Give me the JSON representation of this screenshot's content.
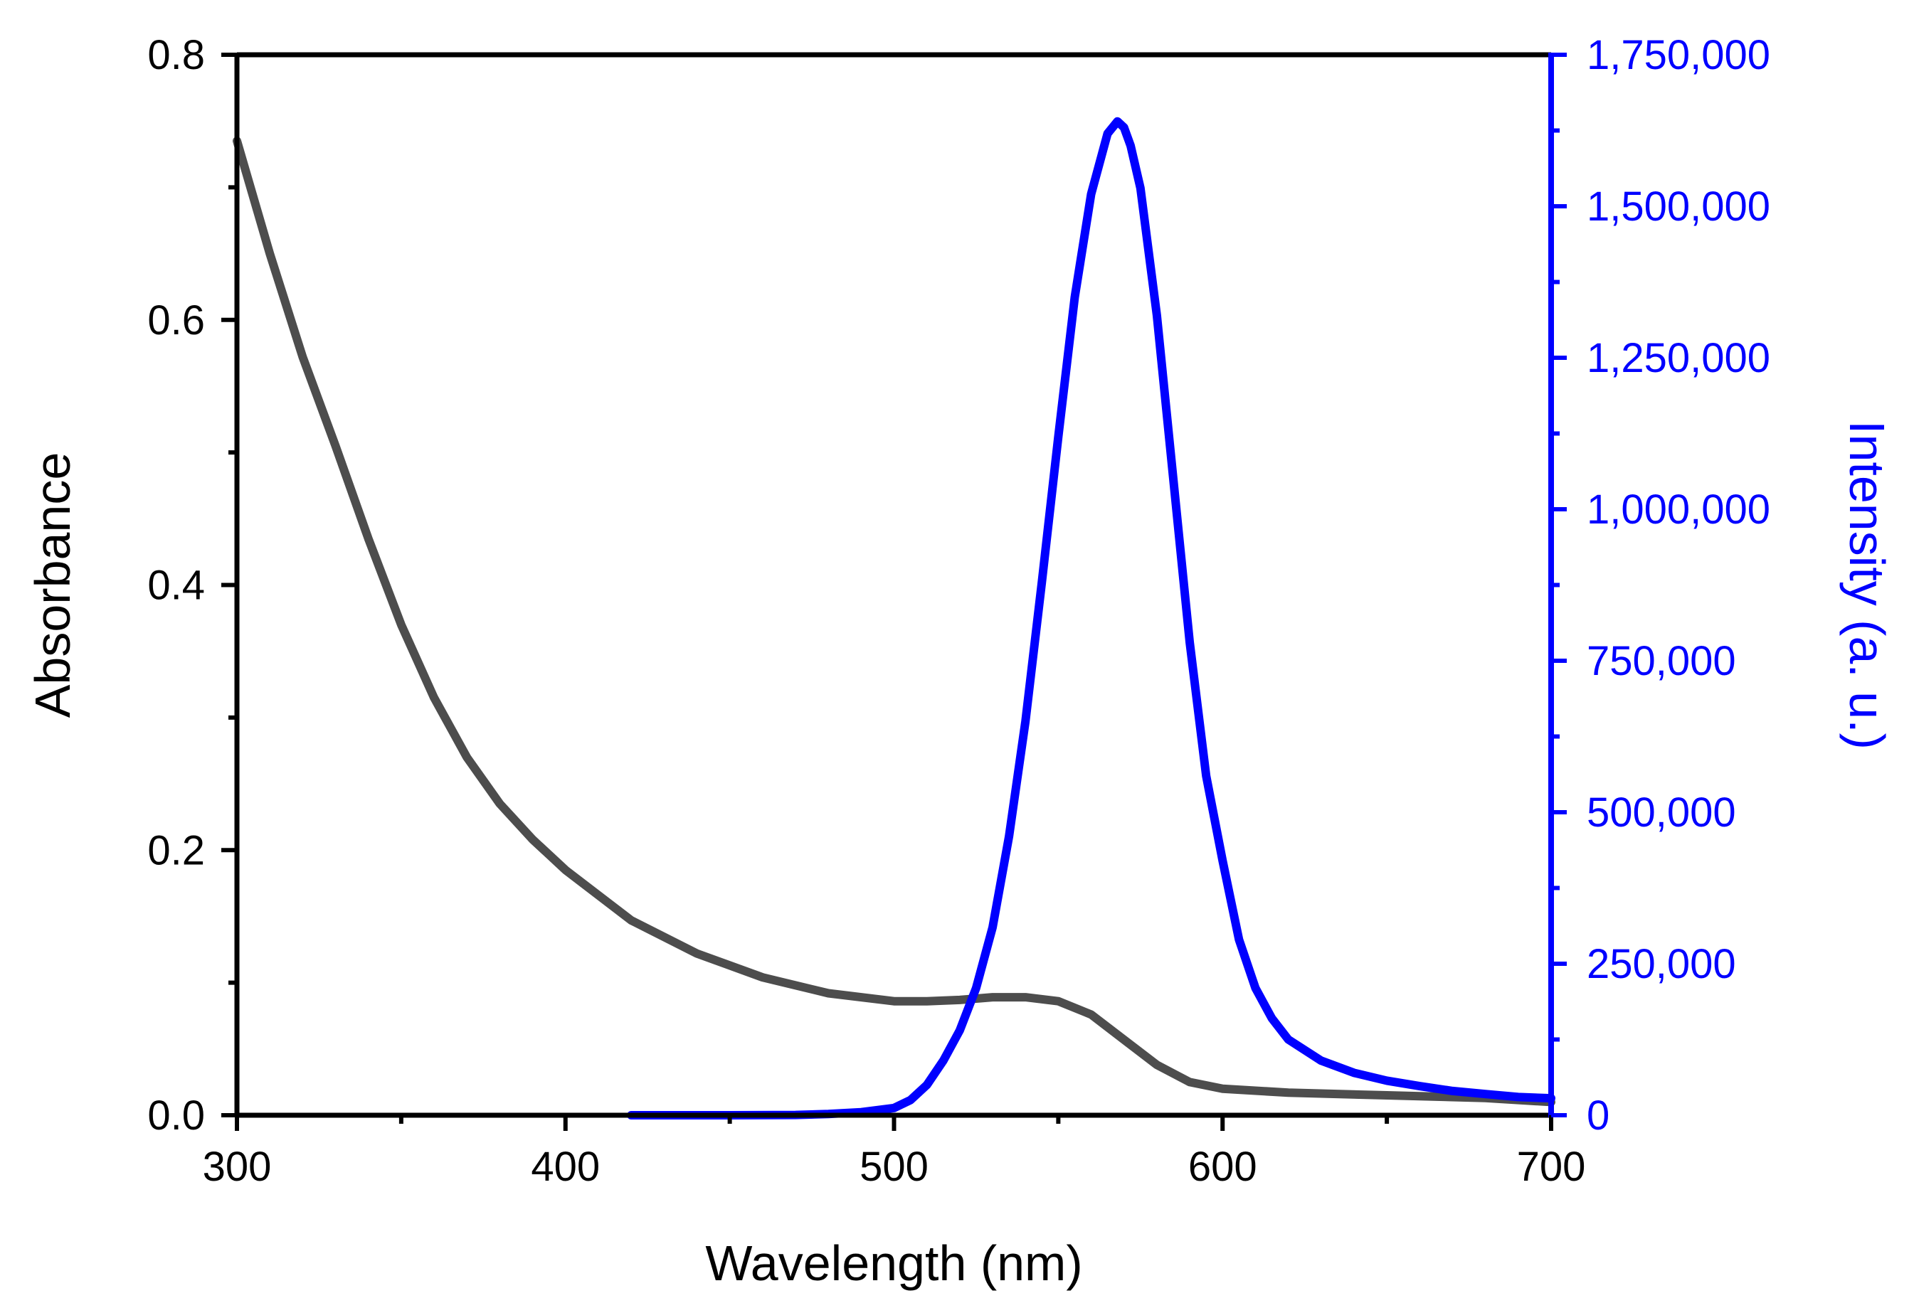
{
  "chart_data": {
    "type": "line",
    "title": "",
    "xlabel": "Wavelength (nm)",
    "ylabel": "Absorbance",
    "y2label": "Intensity (a. u.)",
    "xlim": [
      300,
      700
    ],
    "ylim": [
      0,
      0.8
    ],
    "y2lim": [
      0,
      1750000
    ],
    "x_ticks": [
      300,
      400,
      500,
      600,
      700
    ],
    "x_tick_labels": [
      "300",
      "400",
      "500",
      "600",
      "700"
    ],
    "y_ticks": [
      0,
      0.2,
      0.4,
      0.6,
      0.8
    ],
    "y_tick_labels": [
      "0.0",
      "0.2",
      "0.4",
      "0.6",
      "0.8"
    ],
    "y2_ticks": [
      0,
      250000,
      500000,
      750000,
      1000000,
      1250000,
      1500000,
      1750000
    ],
    "y2_tick_labels": [
      "0",
      "250,000",
      "500,000",
      "750,000",
      "1,000,000",
      "1,250,000",
      "1,500,000",
      "1,750,000"
    ],
    "grid": false,
    "colors": {
      "axes": "#000000",
      "absorbance": "#4d4d4d",
      "intensity": "#0000ff"
    },
    "series": [
      {
        "name": "Absorbance",
        "axis": "left",
        "x": [
          300,
          310,
          320,
          330,
          340,
          350,
          360,
          370,
          380,
          390,
          400,
          420,
          440,
          460,
          480,
          500,
          510,
          520,
          530,
          540,
          550,
          560,
          570,
          580,
          590,
          600,
          620,
          650,
          680,
          700
        ],
        "values": [
          0.735,
          0.65,
          0.572,
          0.505,
          0.435,
          0.37,
          0.315,
          0.27,
          0.235,
          0.208,
          0.185,
          0.147,
          0.122,
          0.104,
          0.092,
          0.086,
          0.086,
          0.087,
          0.089,
          0.089,
          0.086,
          0.076,
          0.057,
          0.038,
          0.025,
          0.02,
          0.017,
          0.015,
          0.013,
          0.01
        ]
      },
      {
        "name": "Intensity",
        "axis": "right",
        "x": [
          420,
          450,
          470,
          480,
          490,
          500,
          505,
          510,
          515,
          520,
          525,
          530,
          535,
          540,
          545,
          550,
          555,
          560,
          565,
          568,
          570,
          572,
          575,
          580,
          585,
          590,
          595,
          600,
          605,
          610,
          615,
          620,
          630,
          640,
          650,
          660,
          670,
          680,
          690,
          700
        ],
        "values": [
          0,
          0,
          500,
          2000,
          5000,
          12000,
          25000,
          50000,
          90000,
          140000,
          210000,
          310000,
          460000,
          650000,
          880000,
          1120000,
          1350000,
          1520000,
          1620000,
          1640000,
          1630000,
          1600000,
          1530000,
          1320000,
          1050000,
          780000,
          560000,
          420000,
          290000,
          210000,
          160000,
          125000,
          90000,
          70000,
          57000,
          48000,
          40000,
          35000,
          30000,
          28000
        ]
      }
    ]
  }
}
